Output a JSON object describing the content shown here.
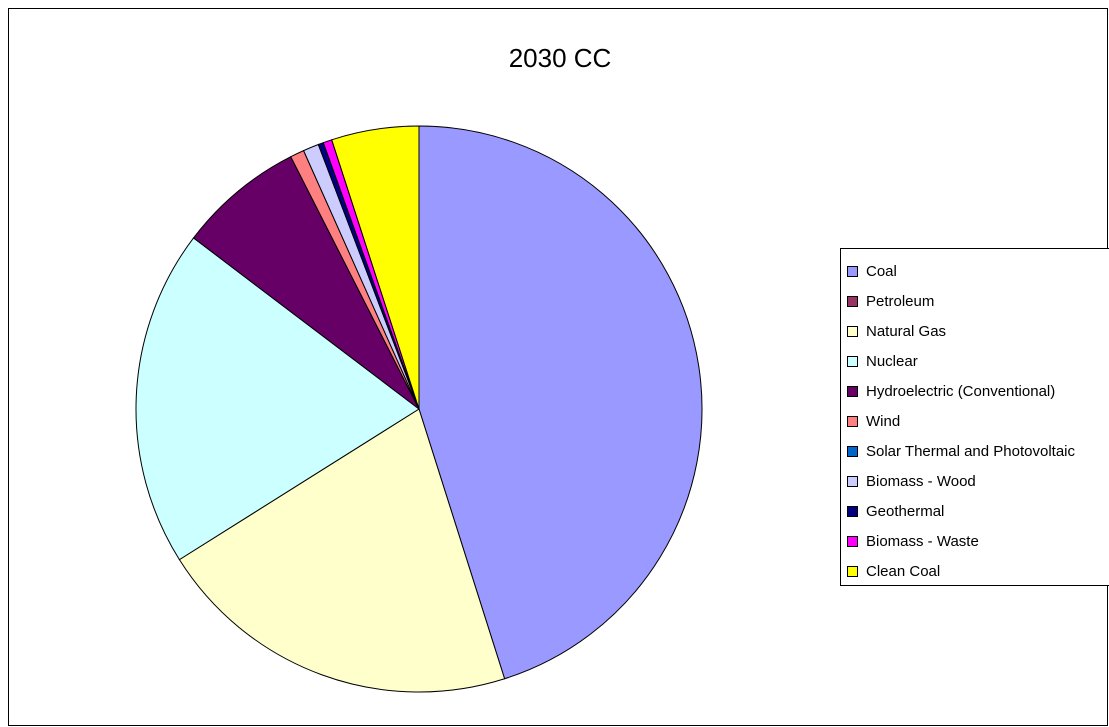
{
  "chart_data": {
    "type": "pie",
    "title": "2030 CC",
    "legend_position": "right",
    "slices": [
      {
        "label": "Coal",
        "value": 45.2,
        "color": "#9999FF"
      },
      {
        "label": "Petroleum",
        "value": 0.0,
        "color": "#993366"
      },
      {
        "label": "Natural Gas",
        "value": 21.0,
        "color": "#FFFFCC"
      },
      {
        "label": "Nuclear",
        "value": 19.3,
        "color": "#CCFFFF"
      },
      {
        "label": "Hydroelectric (Conventional)",
        "value": 7.2,
        "color": "#660066"
      },
      {
        "label": "Wind",
        "value": 0.8,
        "color": "#FF8080"
      },
      {
        "label": "Solar Thermal and Photovoltaic",
        "value": 0.0,
        "color": "#0066CC"
      },
      {
        "label": "Biomass - Wood",
        "value": 0.9,
        "color": "#CCCCFF"
      },
      {
        "label": "Geothermal",
        "value": 0.3,
        "color": "#000080"
      },
      {
        "label": "Biomass - Waste",
        "value": 0.5,
        "color": "#FF00FF"
      },
      {
        "label": "Clean Coal",
        "value": 5.0,
        "color": "#FFFF00"
      }
    ]
  }
}
